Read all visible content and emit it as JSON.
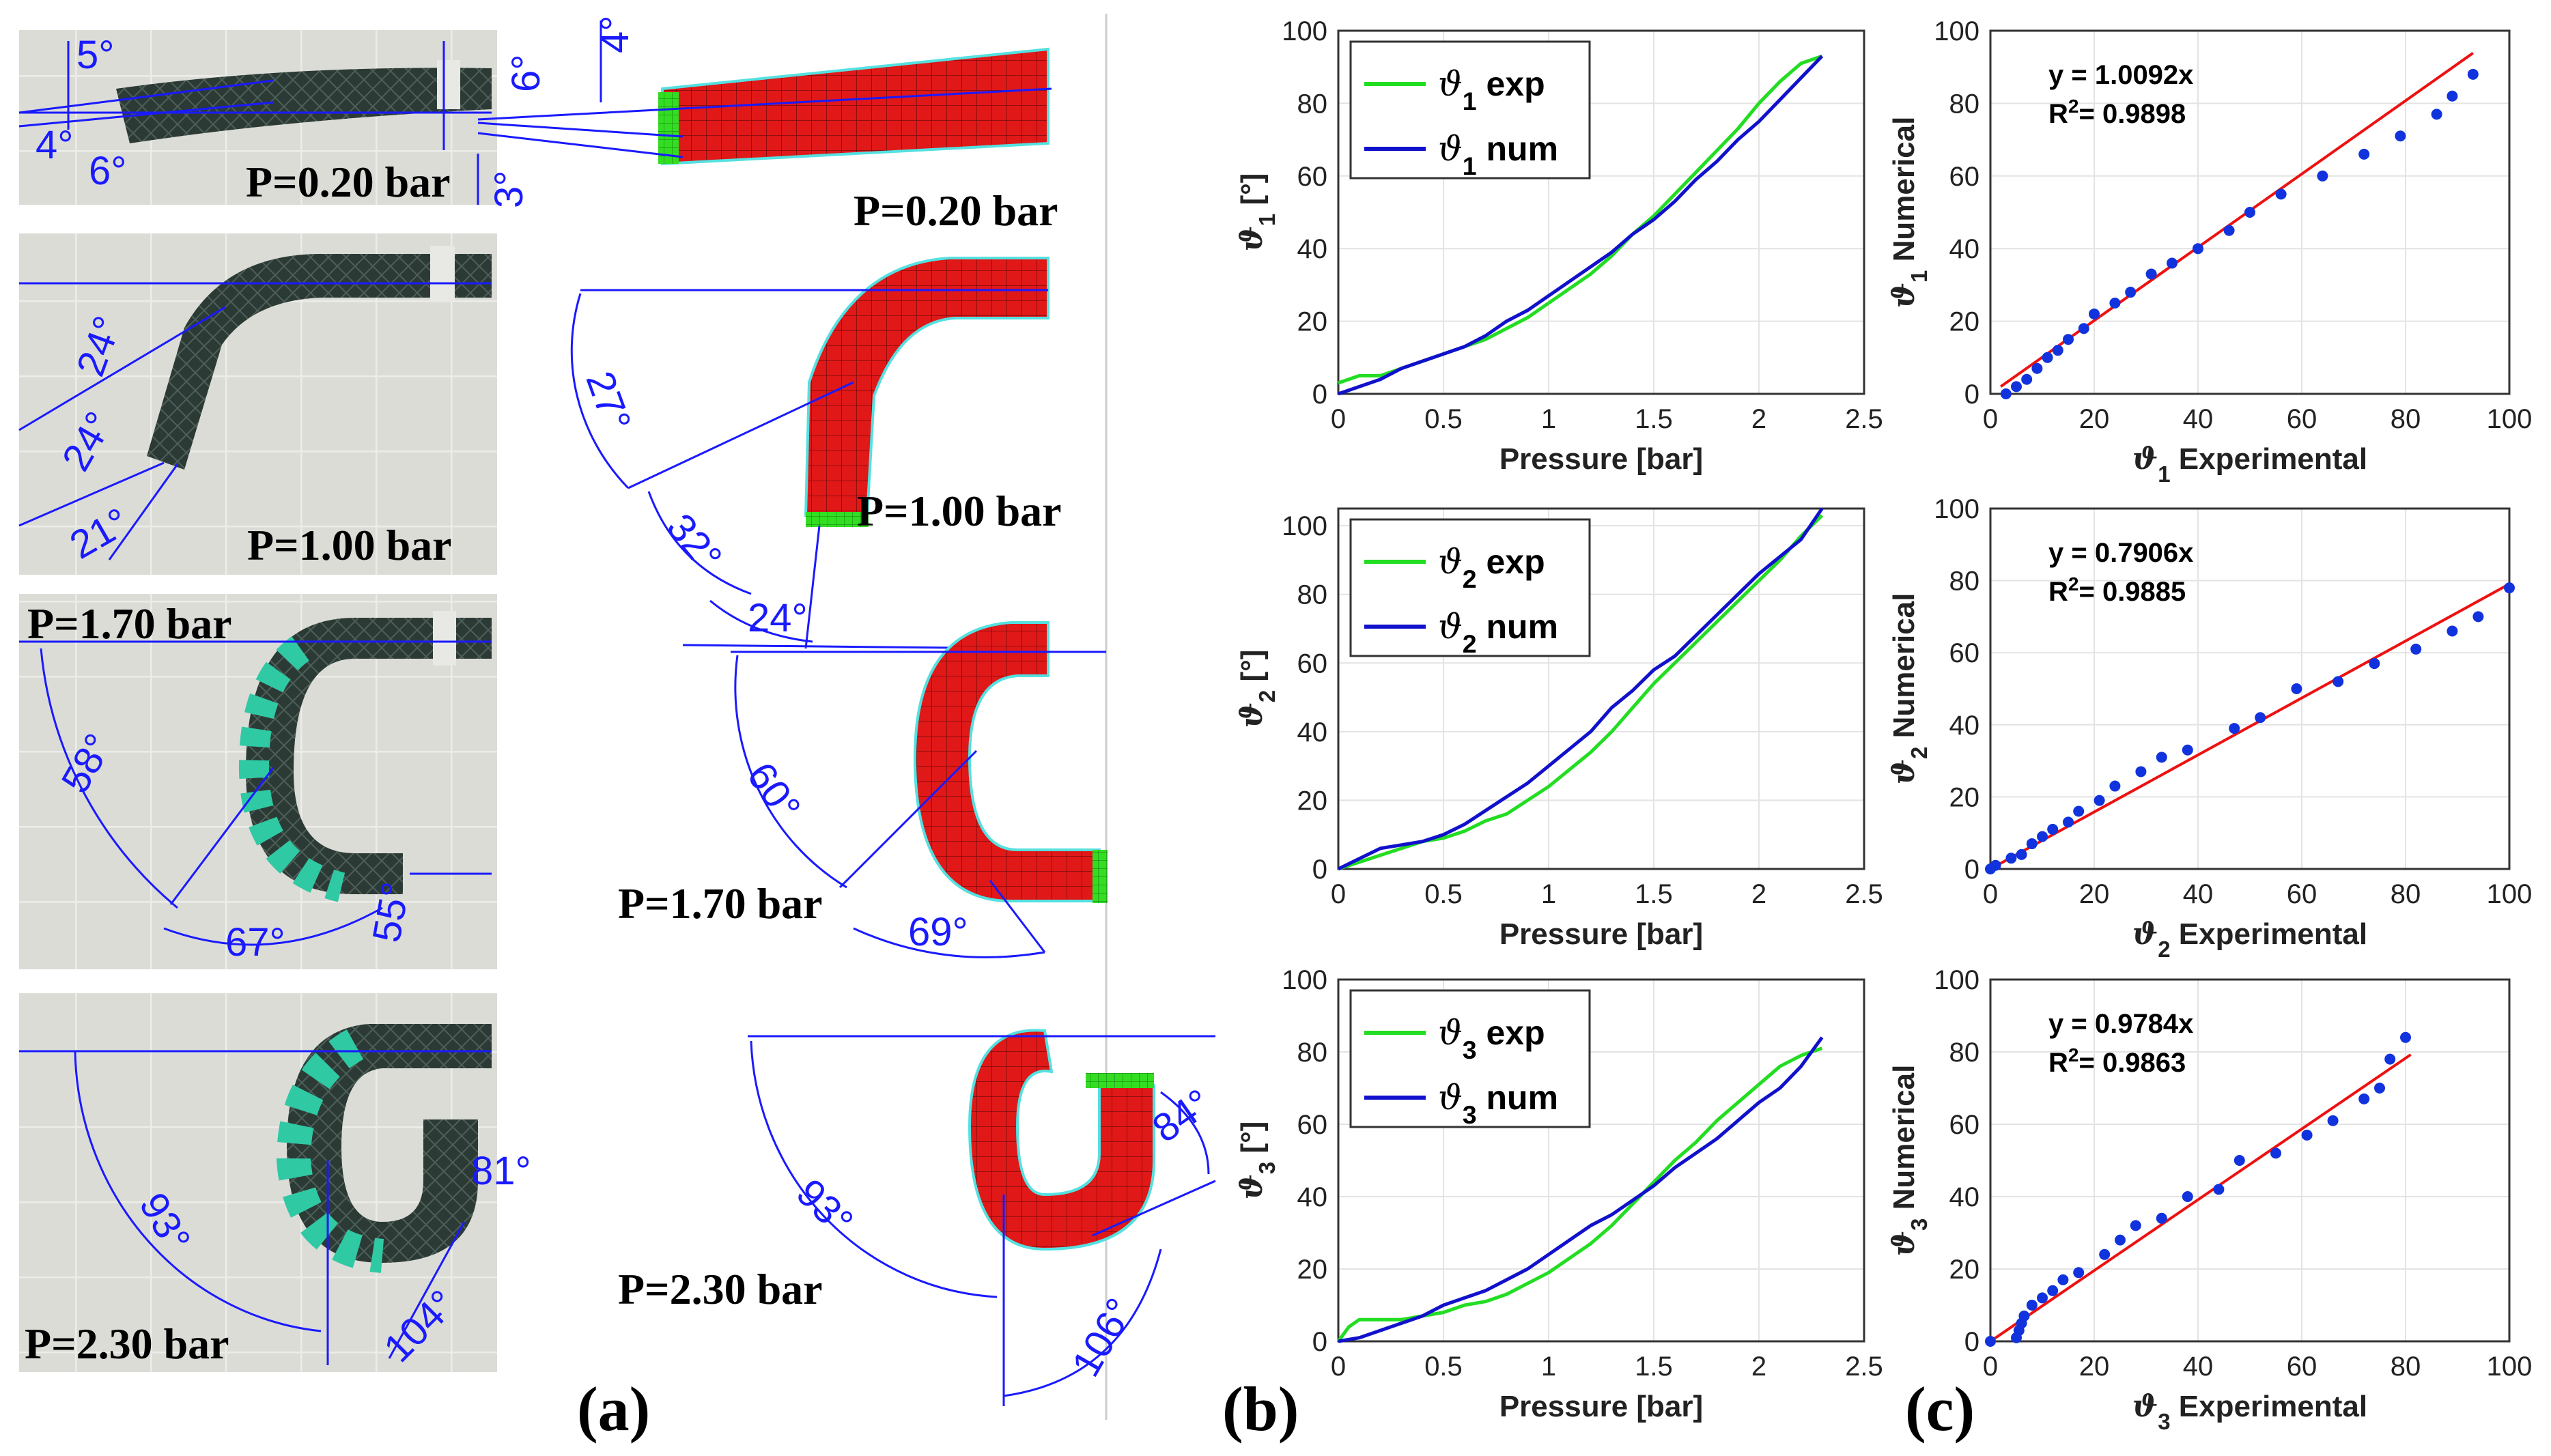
{
  "panel_labels": [
    "(a)",
    "(b)",
    "(c)"
  ],
  "panel_a": {
    "photos": [
      {
        "pressure_label": "P=0.20 bar",
        "angles": [
          "5°",
          "4°",
          "6°"
        ]
      },
      {
        "pressure_label": "P=1.00 bar",
        "angles": [
          "24°",
          "24°",
          "21°"
        ]
      },
      {
        "pressure_label": "P=1.70 bar",
        "angles": [
          "58°",
          "67°",
          "55°"
        ]
      },
      {
        "pressure_label": "P=2.30 bar",
        "angles": [
          "93°",
          "81°",
          "104°"
        ]
      }
    ],
    "simulations": [
      {
        "pressure_label": "P=0.20 bar",
        "angles": [
          "4°",
          "6°",
          "3°"
        ]
      },
      {
        "pressure_label": "P=1.00 bar",
        "angles": [
          "27°",
          "32°",
          "24°"
        ]
      },
      {
        "pressure_label": "P=1.70 bar",
        "angles": [
          "60°",
          "69°"
        ]
      },
      {
        "pressure_label": "P=2.30 bar",
        "angles": [
          "93°",
          "106°",
          "84°"
        ]
      }
    ]
  },
  "colors": {
    "exp": "#22dd22",
    "num": "#1111cc",
    "fit": "#ee1111",
    "points": "#1133dd",
    "annotation": "#1a1aff"
  },
  "chart_data": [
    {
      "type": "line",
      "id": "b1",
      "xlabel": "Pressure [bar]",
      "ylabel": "ϑ1 [°]",
      "ysym": "ϑ",
      "ysub": "1",
      "yunit": " [°]",
      "xlim": [
        0,
        2.5
      ],
      "ylim": [
        0,
        100
      ],
      "xticks": [
        0,
        0.5,
        1,
        1.5,
        2,
        2.5
      ],
      "yticks": [
        0,
        20,
        40,
        60,
        80,
        100
      ],
      "xtick_labels": [
        "0",
        "0.5",
        "1",
        "1.5",
        "2",
        "2.5"
      ],
      "grid": true,
      "legend_loc": "top-left",
      "series": [
        {
          "name": "ϑ1 exp",
          "legend_sub": "1",
          "legend_word": "exp",
          "role": "exp",
          "x": [
            0,
            0.1,
            0.2,
            0.3,
            0.4,
            0.5,
            0.6,
            0.7,
            0.8,
            0.9,
            1.0,
            1.1,
            1.2,
            1.3,
            1.4,
            1.5,
            1.6,
            1.7,
            1.8,
            1.9,
            2.0,
            2.1,
            2.2,
            2.3
          ],
          "y": [
            3,
            5,
            5,
            7,
            9,
            11,
            13,
            15,
            18,
            21,
            25,
            29,
            33,
            38,
            44,
            49,
            55,
            61,
            67,
            73,
            80,
            86,
            91,
            93
          ]
        },
        {
          "name": "ϑ1 num",
          "legend_sub": "1",
          "legend_word": "num",
          "role": "num",
          "x": [
            0,
            0.1,
            0.2,
            0.3,
            0.4,
            0.5,
            0.6,
            0.7,
            0.8,
            0.9,
            1.0,
            1.1,
            1.2,
            1.3,
            1.4,
            1.5,
            1.6,
            1.7,
            1.8,
            1.9,
            2.0,
            2.1,
            2.2,
            2.3
          ],
          "y": [
            0,
            2,
            4,
            7,
            9,
            11,
            13,
            16,
            20,
            23,
            27,
            31,
            35,
            39,
            44,
            48,
            53,
            59,
            64,
            70,
            75,
            81,
            87,
            93
          ]
        }
      ]
    },
    {
      "type": "scatter",
      "id": "c1",
      "xlabel": "ϑ1 Experimental",
      "ylabel": "ϑ1 Numerical",
      "xsym": "ϑ",
      "xsub": "1",
      "xword": " Experimental",
      "ysym": "ϑ",
      "ysub": "1",
      "yword": " Numerical",
      "xlim": [
        0,
        100
      ],
      "ylim": [
        0,
        100
      ],
      "xticks": [
        0,
        20,
        40,
        60,
        80,
        100
      ],
      "yticks": [
        0,
        20,
        40,
        60,
        80,
        100
      ],
      "grid": true,
      "fit": {
        "equation": "y = 1.0092x",
        "r2_label": "R",
        "r2_value": "= 0.9898",
        "slope": 1.0092,
        "x_range": [
          2,
          93
        ]
      },
      "x": [
        3,
        5,
        7,
        9,
        11,
        13,
        15,
        18,
        20,
        24,
        27,
        31,
        35,
        40,
        46,
        50,
        56,
        64,
        72,
        79,
        86,
        89,
        93
      ],
      "y": [
        0,
        2,
        4,
        7,
        10,
        12,
        15,
        18,
        22,
        25,
        28,
        33,
        36,
        40,
        45,
        50,
        55,
        60,
        66,
        71,
        77,
        82,
        88
      ]
    },
    {
      "type": "line",
      "id": "b2",
      "xlabel": "Pressure [bar]",
      "ylabel": "ϑ2 [°]",
      "ysym": "ϑ",
      "ysub": "2",
      "yunit": " [°]",
      "xlim": [
        0,
        2.5
      ],
      "ylim": [
        0,
        105
      ],
      "xticks": [
        0,
        0.5,
        1,
        1.5,
        2,
        2.5
      ],
      "yticks": [
        0,
        20,
        40,
        60,
        80,
        100
      ],
      "xtick_labels": [
        "0",
        "0.5",
        "1",
        "1.5",
        "2",
        "2.5"
      ],
      "grid": true,
      "legend_loc": "top-left",
      "series": [
        {
          "name": "ϑ2 exp",
          "legend_sub": "2",
          "legend_word": "exp",
          "role": "exp",
          "x": [
            0,
            0.1,
            0.2,
            0.3,
            0.4,
            0.5,
            0.6,
            0.7,
            0.8,
            0.9,
            1.0,
            1.1,
            1.2,
            1.3,
            1.4,
            1.5,
            1.6,
            1.7,
            1.8,
            1.9,
            2.0,
            2.1,
            2.2,
            2.3
          ],
          "y": [
            0,
            2,
            4,
            6,
            8,
            9,
            11,
            14,
            16,
            20,
            24,
            29,
            34,
            40,
            47,
            54,
            60,
            66,
            72,
            78,
            84,
            90,
            97,
            103
          ]
        },
        {
          "name": "ϑ2 num",
          "legend_sub": "2",
          "legend_word": "num",
          "role": "num",
          "x": [
            0,
            0.1,
            0.2,
            0.3,
            0.4,
            0.5,
            0.6,
            0.7,
            0.8,
            0.9,
            1.0,
            1.1,
            1.2,
            1.3,
            1.4,
            1.5,
            1.6,
            1.7,
            1.8,
            1.9,
            2.0,
            2.1,
            2.2,
            2.3
          ],
          "y": [
            0,
            3,
            6,
            7,
            8,
            10,
            13,
            17,
            21,
            25,
            30,
            35,
            40,
            47,
            52,
            58,
            62,
            68,
            74,
            80,
            86,
            91,
            96,
            105
          ]
        }
      ]
    },
    {
      "type": "scatter",
      "id": "c2",
      "xlabel": "ϑ2 Experimental",
      "ylabel": "ϑ2 Numerical",
      "xsym": "ϑ",
      "xsub": "2",
      "xword": " Experimental",
      "ysym": "ϑ",
      "ysub": "2",
      "yword": " Numerical",
      "xlim": [
        0,
        100
      ],
      "ylim": [
        0,
        100
      ],
      "xticks": [
        0,
        20,
        40,
        60,
        80,
        100
      ],
      "yticks": [
        0,
        20,
        40,
        60,
        80,
        100
      ],
      "grid": true,
      "fit": {
        "equation": "y = 0.7906x",
        "r2_label": "R",
        "r2_value": "= 0.9885",
        "slope": 0.7906,
        "x_range": [
          0,
          100
        ]
      },
      "x": [
        0,
        1,
        4,
        6,
        8,
        10,
        12,
        15,
        17,
        21,
        24,
        29,
        33,
        38,
        47,
        52,
        59,
        67,
        74,
        82,
        89,
        94,
        100
      ],
      "y": [
        0,
        1,
        3,
        4,
        7,
        9,
        11,
        13,
        16,
        19,
        23,
        27,
        31,
        33,
        39,
        42,
        50,
        52,
        57,
        61,
        66,
        70,
        78
      ]
    },
    {
      "type": "line",
      "id": "b3",
      "xlabel": "Pressure [bar]",
      "ylabel": "ϑ3 [°]",
      "ysym": "ϑ",
      "ysub": "3",
      "yunit": " [°]",
      "xlim": [
        0,
        2.5
      ],
      "ylim": [
        0,
        100
      ],
      "xticks": [
        0,
        0.5,
        1,
        1.5,
        2,
        2.5
      ],
      "yticks": [
        0,
        20,
        40,
        60,
        80,
        100
      ],
      "xtick_labels": [
        "0",
        "0.5",
        "1",
        "1.5",
        "2",
        "2.5"
      ],
      "grid": true,
      "legend_loc": "top-left",
      "series": [
        {
          "name": "ϑ3 exp",
          "legend_sub": "3",
          "legend_word": "exp",
          "role": "exp",
          "x": [
            0,
            0.05,
            0.1,
            0.2,
            0.3,
            0.4,
            0.5,
            0.6,
            0.7,
            0.8,
            0.9,
            1.0,
            1.1,
            1.2,
            1.3,
            1.4,
            1.5,
            1.6,
            1.7,
            1.8,
            1.9,
            2.0,
            2.1,
            2.2,
            2.3
          ],
          "y": [
            0,
            4,
            6,
            6,
            6,
            7,
            8,
            10,
            11,
            13,
            16,
            19,
            23,
            27,
            32,
            38,
            44,
            50,
            55,
            61,
            66,
            71,
            76,
            79,
            81
          ]
        },
        {
          "name": "ϑ3 num",
          "legend_sub": "3",
          "legend_word": "num",
          "role": "num",
          "x": [
            0,
            0.1,
            0.2,
            0.3,
            0.4,
            0.5,
            0.6,
            0.7,
            0.8,
            0.9,
            1.0,
            1.1,
            1.2,
            1.3,
            1.4,
            1.5,
            1.6,
            1.7,
            1.8,
            1.9,
            2.0,
            2.1,
            2.2,
            2.3
          ],
          "y": [
            0,
            1,
            3,
            5,
            7,
            10,
            12,
            14,
            17,
            20,
            24,
            28,
            32,
            35,
            39,
            43,
            48,
            52,
            56,
            61,
            66,
            70,
            76,
            84
          ]
        }
      ]
    },
    {
      "type": "scatter",
      "id": "c3",
      "xlabel": "ϑ3 Experimental",
      "ylabel": "ϑ3 Numerical",
      "xsym": "ϑ",
      "xsub": "3",
      "xword": " Experimental",
      "ysym": "ϑ",
      "ysub": "3",
      "yword": " Numerical",
      "xlim": [
        0,
        100
      ],
      "ylim": [
        0,
        100
      ],
      "xticks": [
        0,
        20,
        40,
        60,
        80,
        100
      ],
      "yticks": [
        0,
        20,
        40,
        60,
        80,
        100
      ],
      "grid": true,
      "fit": {
        "equation": "y = 0.9784x",
        "r2_label": "R",
        "r2_value": "= 0.9863",
        "slope": 0.9784,
        "x_range": [
          0,
          81
        ]
      },
      "x": [
        0,
        5,
        5.5,
        6,
        6.5,
        8,
        10,
        12,
        14,
        17,
        22,
        25,
        28,
        33,
        38,
        44,
        48,
        55,
        61,
        66,
        72,
        75,
        77,
        80
      ],
      "y": [
        0,
        1,
        3,
        5,
        7,
        10,
        12,
        14,
        17,
        19,
        24,
        28,
        32,
        34,
        40,
        42,
        50,
        52,
        57,
        61,
        67,
        70,
        78,
        84
      ]
    }
  ]
}
